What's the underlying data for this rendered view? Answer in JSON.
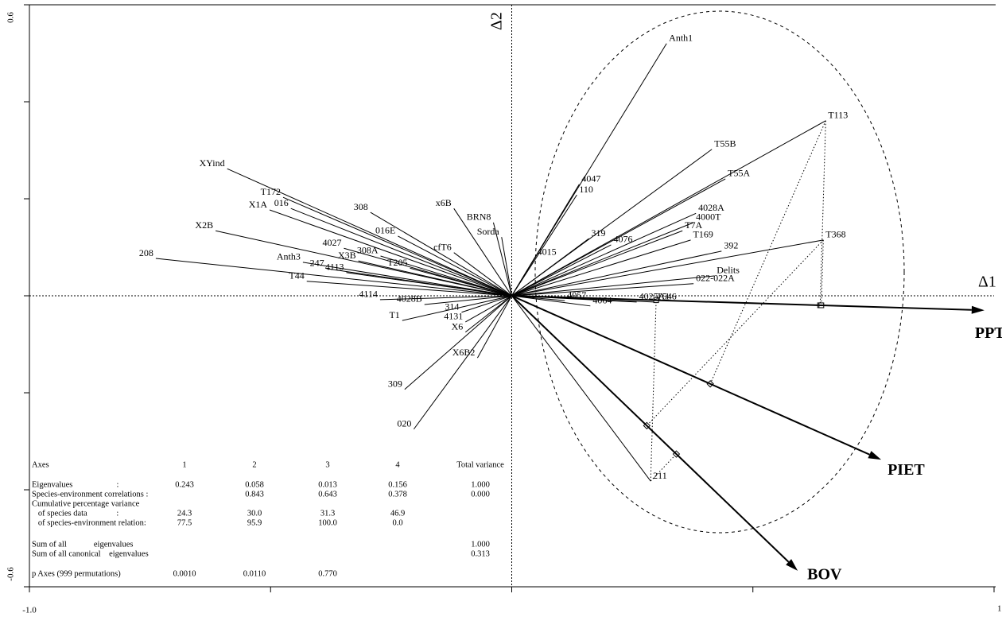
{
  "chart_data": {
    "type": "biplot",
    "x_label": "Δ1",
    "y_label": "Δ2",
    "xlim": [
      -1,
      1
    ],
    "ylim": [
      -0.6,
      0.6
    ],
    "xticks": [
      {
        "value": -1,
        "label": "-1.0"
      },
      {
        "value": -0.5
      },
      {
        "value": 0
      },
      {
        "value": 0.5
      },
      1
    ],
    "yticks": [
      {
        "value": -0.6,
        "label": "-0.6"
      },
      {
        "value": -0.4
      },
      {
        "value": -0.2
      },
      {
        "value": 0
      },
      {
        "value": 0.2
      },
      {
        "value": 0.4
      },
      {
        "value": 0.6,
        "label": "0.6"
      }
    ],
    "species": {
      "labels": [
        "Anth1",
        "T113",
        "T55B",
        "T55A",
        "4047",
        "110",
        "4028A",
        "4000T",
        "T7A",
        "T169",
        "319",
        "4076",
        "392",
        "T368",
        "4015",
        "Delits",
        "022-022A",
        "T546",
        "4057",
        "4064",
        "4025A1",
        "211",
        "XYind",
        "T172",
        "X1A",
        "016",
        "308",
        "X2B",
        "x6B",
        "BRN8",
        "Sorda",
        "016E",
        "cfT6",
        "4027",
        "308A",
        "X3B",
        "T205",
        "208",
        "Anth3",
        "247",
        "4113",
        "T44",
        "4114",
        "4028B",
        "T1",
        "314",
        "4131",
        "X6",
        "X6B2",
        "309",
        "020"
      ],
      "x": [
        0.321,
        0.651,
        0.415,
        0.443,
        0.14,
        0.135,
        0.382,
        0.377,
        0.354,
        0.371,
        0.16,
        0.206,
        0.435,
        0.646,
        0.048,
        0.42,
        0.377,
        0.295,
        0.11,
        0.163,
        0.259,
        0.288,
        -0.59,
        -0.474,
        -0.502,
        -0.458,
        -0.293,
        -0.614,
        -0.12,
        -0.038,
        -0.021,
        -0.236,
        -0.12,
        -0.348,
        -0.272,
        -0.318,
        -0.211,
        -0.738,
        -0.433,
        -0.384,
        -0.343,
        -0.425,
        -0.273,
        -0.181,
        -0.227,
        -0.104,
        -0.096,
        -0.096,
        -0.071,
        -0.222,
        -0.203
      ],
      "y": [
        0.52,
        0.361,
        0.302,
        0.241,
        0.23,
        0.208,
        0.17,
        0.151,
        0.134,
        0.115,
        0.118,
        0.105,
        0.092,
        0.115,
        0.079,
        0.041,
        0.025,
        -0.013,
        -0.01,
        -0.021,
        -0.013,
        -0.382,
        0.262,
        0.203,
        0.177,
        0.18,
        0.172,
        0.134,
        0.18,
        0.151,
        0.121,
        0.123,
        0.089,
        0.098,
        0.082,
        0.072,
        0.057,
        0.077,
        0.069,
        0.056,
        0.048,
        0.03,
        -0.008,
        -0.018,
        -0.051,
        -0.034,
        -0.054,
        -0.075,
        -0.128,
        -0.193,
        -0.275
      ]
    },
    "environment": {
      "labels": [
        "PPT",
        "PIET",
        "BOV"
      ],
      "x": [
        0.98,
        0.766,
        0.593
      ],
      "y": [
        -0.03,
        -0.338,
        -0.567
      ]
    },
    "table": {
      "header": [
        "Axes",
        "1",
        "2",
        "3",
        "4",
        "Total variance"
      ],
      "rows": [
        [
          "Eigenvalues                     :",
          "0.243",
          "0.058",
          "0.013",
          "0.156",
          "1.000"
        ],
        [
          "Species-environment correlations :",
          null,
          "0.843",
          "0.643",
          "0.378",
          "0.000"
        ],
        [
          "Cumulative percentage variance",
          null,
          null,
          null,
          null,
          null
        ],
        [
          "   of species data              :",
          "24.3",
          "30.0",
          "31.3",
          "46.9",
          null
        ],
        [
          "   of species-environment relation:",
          "77.5",
          "95.9",
          "100.0",
          "0.0",
          null
        ],
        [
          "Sum of all             eigenvalues",
          null,
          null,
          null,
          null,
          "1.000"
        ],
        [
          "Sum of all canonical    eigenvalues",
          null,
          null,
          null,
          null,
          "0.313"
        ],
        [
          "p Axes (999 permutations)",
          "0.0010",
          "0.0110",
          "0.770",
          null,
          null
        ]
      ]
    }
  }
}
